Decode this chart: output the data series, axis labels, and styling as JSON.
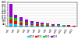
{
  "categories": [
    "cat1",
    "cat2",
    "cat3",
    "cat4",
    "cat5",
    "cat6",
    "cat7",
    "cat8",
    "cat9",
    "cat10",
    "cat11",
    "cat12",
    "cat13"
  ],
  "series": {
    "cyan": [
      500,
      350,
      250,
      200,
      180,
      160,
      140,
      120,
      100,
      80,
      60,
      40,
      30
    ],
    "red": [
      600,
      500,
      350,
      280,
      220,
      180,
      150,
      130,
      110,
      90,
      70,
      50,
      40
    ],
    "green": [
      400,
      600,
      350,
      200,
      160,
      130,
      110,
      90,
      80,
      60,
      50,
      40,
      30
    ],
    "purple": [
      2200,
      500,
      600,
      450,
      350,
      250,
      200,
      160,
      130,
      100,
      80,
      60,
      40
    ]
  },
  "colors": {
    "cyan": "#00CCFF",
    "red": "#FF0000",
    "green": "#00CC00",
    "purple": "#9900CC"
  },
  "legend_labels": [
    "2018",
    "2019",
    "2020",
    "2021"
  ],
  "ylim": [
    0,
    4000
  ],
  "ytick_count": 9,
  "background_color": "#ffffff",
  "grid_color": "#cccccc"
}
